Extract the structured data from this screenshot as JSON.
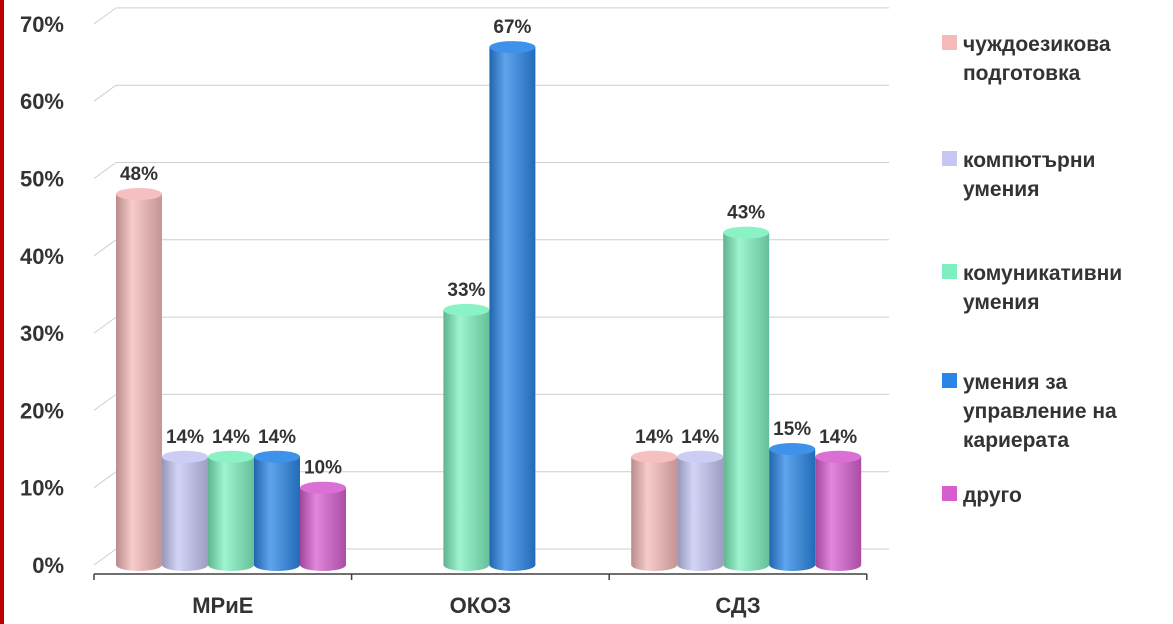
{
  "chart_data": {
    "type": "bar",
    "categories": [
      "МРиЕ",
      "ОКОЗ",
      "СДЗ"
    ],
    "yticks": [
      "0%",
      "10%",
      "20%",
      "30%",
      "40%",
      "50%",
      "60%",
      "70%"
    ],
    "ylim": [
      0,
      70
    ],
    "grid": true,
    "legend_position": "right",
    "series": [
      {
        "name": "чуждоезикова подготовка",
        "color": "#f6b9b9",
        "values": [
          48,
          null,
          14
        ],
        "labels": [
          "48%",
          "",
          "14%"
        ]
      },
      {
        "name": "компютърни умения",
        "color": "#c6c6f4",
        "values": [
          14,
          null,
          14
        ],
        "labels": [
          "14%",
          "",
          "14%"
        ]
      },
      {
        "name": "комуникативни умения",
        "color": "#7ef0bf",
        "values": [
          14,
          33,
          43
        ],
        "labels": [
          "14%",
          "33%",
          "43%"
        ]
      },
      {
        "name": "умения за управление на кариерата",
        "color": "#2a86e6",
        "values": [
          14,
          67,
          15
        ],
        "labels": [
          "14%",
          "67%",
          "15%"
        ]
      },
      {
        "name": "друго",
        "color": "#d65fcf",
        "values": [
          10,
          null,
          14
        ],
        "labels": [
          "10%",
          "",
          "14%"
        ]
      }
    ]
  },
  "legend": [
    {
      "text": "чуждоезикова\nподготовка",
      "color": "#f6b9b9"
    },
    {
      "text": "компютърни\nумения",
      "color": "#c6c6f4"
    },
    {
      "text": "комуникативни\nумения",
      "color": "#7ef0bf"
    },
    {
      "text": "умения за\nуправление на\nкариерата",
      "color": "#2a86e6"
    },
    {
      "text": "друго",
      "color": "#d65fcf"
    }
  ]
}
